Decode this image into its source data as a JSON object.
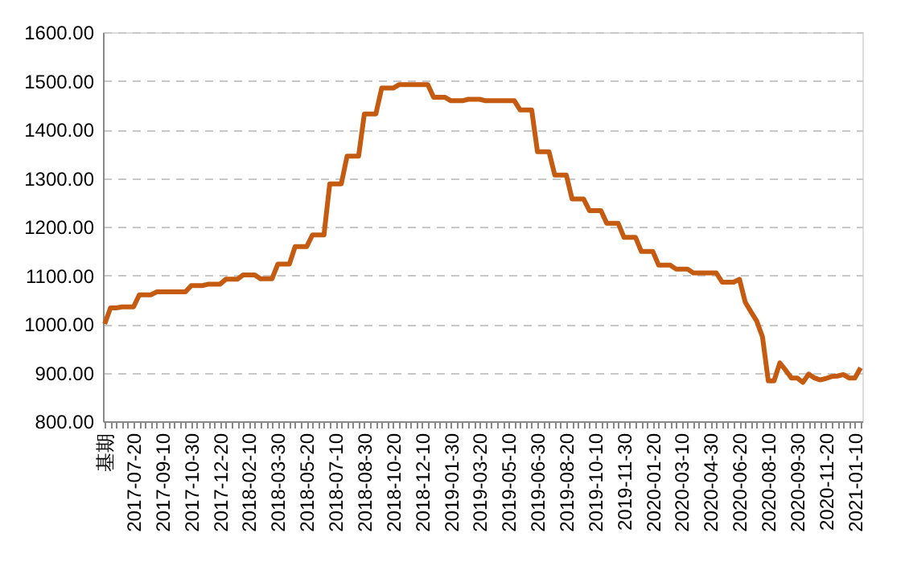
{
  "chart_data": {
    "type": "line",
    "categories": [
      "基期",
      null,
      null,
      null,
      null,
      "2017-07-20",
      null,
      null,
      null,
      null,
      "2017-09-10",
      null,
      null,
      null,
      null,
      "2017-10-30",
      null,
      null,
      null,
      null,
      "2017-12-20",
      null,
      null,
      null,
      null,
      "2018-02-10",
      null,
      null,
      null,
      null,
      "2018-03-30",
      null,
      null,
      null,
      null,
      "2018-05-20",
      null,
      null,
      null,
      null,
      "2018-07-10",
      null,
      null,
      null,
      null,
      "2018-08-30",
      null,
      null,
      null,
      null,
      "2018-10-20",
      null,
      null,
      null,
      null,
      "2018-12-10",
      null,
      null,
      null,
      null,
      "2019-01-30",
      null,
      null,
      null,
      null,
      "2019-03-20",
      null,
      null,
      null,
      null,
      "2019-05-10",
      null,
      null,
      null,
      null,
      "2019-06-30",
      null,
      null,
      null,
      null,
      "2019-08-20",
      null,
      null,
      null,
      null,
      "2019-10-10",
      null,
      null,
      null,
      null,
      "2019-11-30",
      null,
      null,
      null,
      null,
      "2020-01-20",
      null,
      null,
      null,
      null,
      "2020-03-10",
      null,
      null,
      null,
      null,
      "2020-04-30",
      null,
      null,
      null,
      null,
      "2020-06-20",
      null,
      null,
      null,
      null,
      "2020-08-10",
      null,
      null,
      null,
      null,
      "2020-09-30",
      null,
      null,
      null,
      null,
      "2020-11-20",
      null,
      null,
      null,
      null,
      "2021-01-10",
      null
    ],
    "series": [
      {
        "color": "#c55a11",
        "values": [
          1000,
          1033,
          1033,
          1035,
          1035,
          1035,
          1060,
          1060,
          1060,
          1066,
          1066,
          1066,
          1066,
          1066,
          1066,
          1079,
          1079,
          1079,
          1082,
          1082,
          1082,
          1092,
          1092,
          1092,
          1101,
          1101,
          1101,
          1093,
          1093,
          1093,
          1123,
          1123,
          1123,
          1159,
          1159,
          1159,
          1183,
          1183,
          1183,
          1288,
          1288,
          1288,
          1345,
          1345,
          1345,
          1432,
          1432,
          1432,
          1485,
          1485,
          1485,
          1492,
          1492,
          1492,
          1492,
          1492,
          1492,
          1466,
          1466,
          1466,
          1459,
          1459,
          1459,
          1462,
          1462,
          1462,
          1459,
          1459,
          1459,
          1459,
          1459,
          1459,
          1440,
          1440,
          1440,
          1354,
          1354,
          1354,
          1306,
          1306,
          1306,
          1257,
          1257,
          1257,
          1233,
          1233,
          1233,
          1207,
          1207,
          1207,
          1178,
          1178,
          1178,
          1149,
          1149,
          1149,
          1121,
          1121,
          1121,
          1113,
          1113,
          1113,
          1105,
          1105,
          1105,
          1105,
          1105,
          1086,
          1086,
          1086,
          1092,
          1045,
          1025,
          1006,
          973,
          883,
          883,
          920,
          905,
          889,
          889,
          880,
          897,
          889,
          885,
          888,
          892,
          893,
          896,
          889,
          889,
          910
        ]
      }
    ],
    "ylim": [
      800,
      1600
    ],
    "yticks": [
      {
        "value": 800,
        "label": "800.00"
      },
      {
        "value": 900,
        "label": "900.00"
      },
      {
        "value": 1000,
        "label": "1000.00"
      },
      {
        "value": 1100,
        "label": "1100.00"
      },
      {
        "value": 1200,
        "label": "1200.00"
      },
      {
        "value": 1300,
        "label": "1300.00"
      },
      {
        "value": 1400,
        "label": "1400.00"
      },
      {
        "value": 1500,
        "label": "1500.00"
      },
      {
        "value": 1600,
        "label": "1600.00"
      }
    ],
    "grid": "y",
    "line_style": "solid",
    "marker": "none"
  }
}
